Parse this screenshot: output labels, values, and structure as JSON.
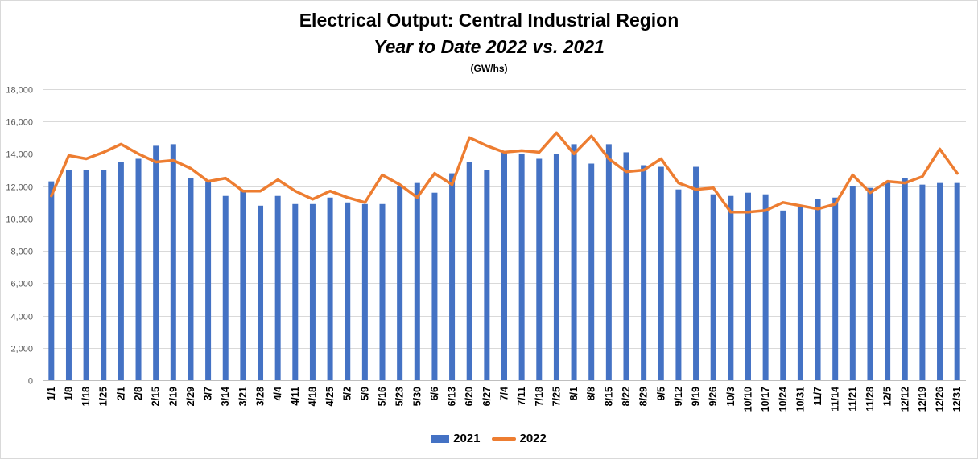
{
  "colors": {
    "series_2021": "#4472C4",
    "series_2022": "#ED7D31",
    "grid": "#d9d9d9",
    "axis_text": "#595959"
  },
  "chart_data": {
    "type": "bar",
    "title": "Electrical Output:  Central Industrial Region",
    "subtitle": "Year to Date 2022 vs. 2021",
    "unit_label": "(GW/hs)",
    "xlabel": "",
    "ylabel": "",
    "ylim": [
      0,
      18000
    ],
    "yticks": [
      "0",
      "2,000",
      "4,000",
      "6,000",
      "8,000",
      "10,000",
      "12,000",
      "14,000",
      "16,000",
      "18,000"
    ],
    "grid": true,
    "legend_position": "bottom",
    "categories": [
      "1/1",
      "1/8",
      "1/18",
      "1/25",
      "2/1",
      "2/8",
      "2/15",
      "2/19",
      "2/29",
      "3/7",
      "3/14",
      "3/21",
      "3/28",
      "4/4",
      "4/11",
      "4/18",
      "4/25",
      "5/2",
      "5/9",
      "5/16",
      "5/23",
      "5/30",
      "6/6",
      "6/13",
      "6/20",
      "6/27",
      "7/4",
      "7/11",
      "7/18",
      "7/25",
      "8/1",
      "8/8",
      "8/15",
      "8/22",
      "8/29",
      "9/5",
      "9/12",
      "9/19",
      "9/26",
      "10/3",
      "10/10",
      "10/17",
      "10/24",
      "10/31",
      "11/7",
      "11/14",
      "11/21",
      "11/28",
      "12/5",
      "12/12",
      "12/19",
      "12/26",
      "12/31"
    ],
    "series": [
      {
        "name": "2021",
        "type": "bar",
        "values": [
          12300,
          13000,
          13000,
          13000,
          13500,
          13700,
          14500,
          14600,
          12500,
          12300,
          11400,
          11700,
          10800,
          11400,
          10900,
          10900,
          11300,
          11000,
          10900,
          10900,
          12000,
          12200,
          11600,
          12800,
          13500,
          13000,
          14100,
          14000,
          13700,
          14000,
          14600,
          13400,
          14600,
          14100,
          13300,
          13200,
          11800,
          13200,
          11500,
          11400,
          11600,
          11500,
          10500,
          10700,
          11200,
          11300,
          12000,
          11900,
          12300,
          12500,
          12100,
          12200,
          12200
        ]
      },
      {
        "name": "2022",
        "type": "line",
        "values": [
          11400,
          13900,
          13700,
          14100,
          14600,
          14000,
          13500,
          13600,
          13100,
          12300,
          12500,
          11700,
          11700,
          12400,
          11700,
          11200,
          11700,
          11300,
          11000,
          12700,
          12100,
          11300,
          12800,
          12100,
          15000,
          14500,
          14100,
          14200,
          14100,
          15300,
          14000,
          15100,
          13700,
          12900,
          13000,
          13700,
          12200,
          11800,
          11900,
          10400,
          10400,
          10500,
          11000,
          10800,
          10600,
          10900,
          12700,
          11600,
          12300,
          12200,
          12600,
          14300,
          12800
        ]
      }
    ]
  }
}
